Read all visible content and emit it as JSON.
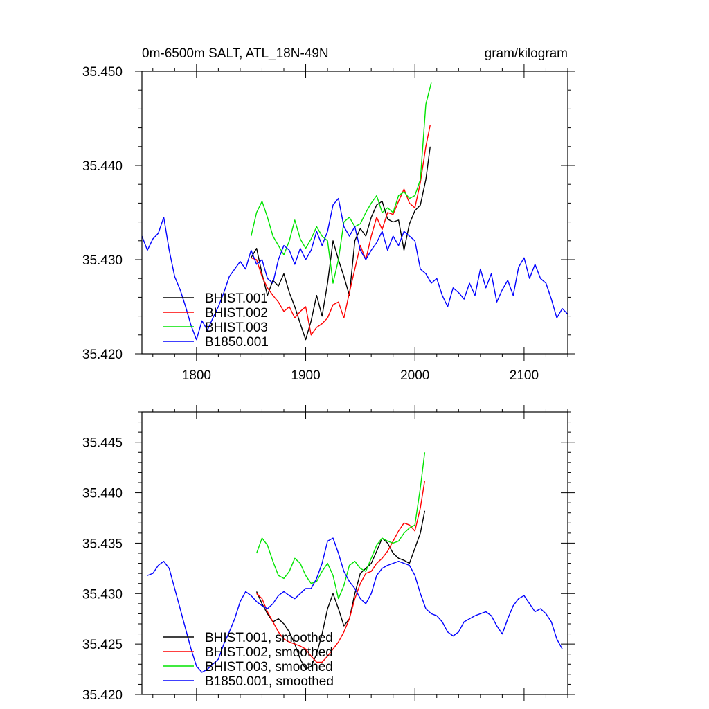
{
  "header": {
    "title": "0m-6500m SALT, ATL_18N-49N",
    "units": "gram/kilogram"
  },
  "colors": {
    "BHIST.001": "#000000",
    "BHIST.002": "#ff0000",
    "BHIST.003": "#00e400",
    "B1850.001": "#0000ff",
    "axis": "#000000",
    "background": "#ffffff"
  },
  "chart_data": [
    {
      "type": "line",
      "title": "0m-6500m SALT, ATL_18N-49N",
      "xlabel": "",
      "ylabel": "",
      "xlim": [
        1750,
        2140
      ],
      "ylim": [
        35.42,
        35.45
      ],
      "xticks": [
        1800,
        1900,
        2000,
        2100
      ],
      "xtick_labels": [
        "1800",
        "1900",
        "2000",
        "2100"
      ],
      "yticks": [
        35.42,
        35.43,
        35.44,
        35.45
      ],
      "ytick_labels": [
        "35.420",
        "35.430",
        "35.440",
        "35.450"
      ],
      "grid": false,
      "legend_position": "bottom-left",
      "series": [
        {
          "name": "BHIST.001",
          "color": "#000000",
          "x": [
            1850,
            1855,
            1860,
            1865,
            1870,
            1875,
            1880,
            1885,
            1890,
            1895,
            1900,
            1905,
            1910,
            1915,
            1920,
            1925,
            1930,
            1935,
            1940,
            1945,
            1950,
            1955,
            1960,
            1965,
            1970,
            1975,
            1980,
            1985,
            1990,
            1995,
            2000,
            2005,
            2010,
            2014
          ],
          "y": [
            35.4302,
            35.4312,
            35.4285,
            35.4262,
            35.4278,
            35.4272,
            35.4285,
            35.4265,
            35.425,
            35.4232,
            35.4215,
            35.4235,
            35.4262,
            35.424,
            35.4275,
            35.432,
            35.43,
            35.4282,
            35.4262,
            35.432,
            35.4333,
            35.4325,
            35.4345,
            35.4358,
            35.4362,
            35.4343,
            35.434,
            35.4342,
            35.431,
            35.4338,
            35.4352,
            35.4358,
            35.4385,
            35.442
          ]
        },
        {
          "name": "BHIST.002",
          "color": "#ff0000",
          "x": [
            1850,
            1855,
            1860,
            1865,
            1870,
            1875,
            1880,
            1885,
            1890,
            1895,
            1900,
            1905,
            1910,
            1915,
            1920,
            1925,
            1930,
            1935,
            1940,
            1945,
            1950,
            1955,
            1960,
            1965,
            1970,
            1975,
            1980,
            1985,
            1990,
            1995,
            2000,
            2005,
            2010,
            2014
          ],
          "y": [
            35.4302,
            35.43,
            35.4282,
            35.427,
            35.4262,
            35.4255,
            35.4245,
            35.425,
            35.4238,
            35.4245,
            35.425,
            35.422,
            35.4228,
            35.4232,
            35.4238,
            35.4252,
            35.4255,
            35.4238,
            35.4265,
            35.429,
            35.4315,
            35.43,
            35.4325,
            35.4345,
            35.4332,
            35.435,
            35.4348,
            35.4362,
            35.4375,
            35.436,
            35.4355,
            35.4382,
            35.442,
            35.4443
          ]
        },
        {
          "name": "BHIST.003",
          "color": "#00e400",
          "x": [
            1850,
            1855,
            1860,
            1865,
            1870,
            1875,
            1880,
            1885,
            1890,
            1895,
            1900,
            1905,
            1910,
            1915,
            1920,
            1925,
            1930,
            1935,
            1940,
            1945,
            1950,
            1955,
            1960,
            1965,
            1970,
            1975,
            1980,
            1985,
            1990,
            1995,
            2000,
            2005,
            2010,
            2015
          ],
          "y": [
            35.4325,
            35.435,
            35.4362,
            35.4345,
            35.4325,
            35.4315,
            35.4305,
            35.432,
            35.4342,
            35.4322,
            35.4312,
            35.4322,
            35.4335,
            35.4325,
            35.432,
            35.4275,
            35.43,
            35.434,
            35.4345,
            35.4335,
            35.4338,
            35.435,
            35.436,
            35.4368,
            35.435,
            35.4355,
            35.435,
            35.4368,
            35.4372,
            35.4365,
            35.4368,
            35.4385,
            35.4465,
            35.4488
          ]
        },
        {
          "name": "B1850.001",
          "color": "#0000ff",
          "x": [
            1750,
            1755,
            1760,
            1765,
            1770,
            1775,
            1780,
            1785,
            1790,
            1795,
            1800,
            1805,
            1810,
            1815,
            1820,
            1825,
            1830,
            1835,
            1840,
            1845,
            1850,
            1855,
            1860,
            1865,
            1870,
            1875,
            1880,
            1885,
            1890,
            1895,
            1900,
            1905,
            1910,
            1915,
            1920,
            1925,
            1930,
            1935,
            1940,
            1945,
            1950,
            1955,
            1960,
            1965,
            1970,
            1975,
            1980,
            1985,
            1990,
            1995,
            2000,
            2005,
            2010,
            2015,
            2020,
            2025,
            2030,
            2035,
            2040,
            2045,
            2050,
            2055,
            2060,
            2065,
            2070,
            2075,
            2080,
            2085,
            2090,
            2095,
            2100,
            2105,
            2110,
            2115,
            2120,
            2125,
            2130,
            2135,
            2140
          ],
          "y": [
            35.4325,
            35.431,
            35.4322,
            35.4328,
            35.4345,
            35.431,
            35.4282,
            35.4268,
            35.425,
            35.423,
            35.4215,
            35.4235,
            35.4225,
            35.4238,
            35.425,
            35.4265,
            35.4282,
            35.429,
            35.4298,
            35.429,
            35.431,
            35.4295,
            35.43,
            35.428,
            35.4275,
            35.43,
            35.4315,
            35.431,
            35.4295,
            35.4312,
            35.43,
            35.431,
            35.433,
            35.4315,
            35.433,
            35.4358,
            35.4365,
            35.4335,
            35.4325,
            35.4335,
            35.431,
            35.43,
            35.431,
            35.4318,
            35.433,
            35.431,
            35.4325,
            35.4315,
            35.433,
            35.4325,
            35.432,
            35.429,
            35.4285,
            35.4275,
            35.428,
            35.4262,
            35.425,
            35.427,
            35.4265,
            35.4258,
            35.4275,
            35.4262,
            35.429,
            35.427,
            35.4285,
            35.4255,
            35.4268,
            35.4278,
            35.4262,
            35.4292,
            35.4302,
            35.428,
            35.4295,
            35.428,
            35.4275,
            35.4258,
            35.4238,
            35.4248,
            35.4242
          ]
        }
      ]
    },
    {
      "type": "line",
      "title": "",
      "xlabel": "",
      "ylabel": "",
      "xlim": [
        1750,
        2140
      ],
      "ylim": [
        35.42,
        35.448
      ],
      "xticks": [
        1800,
        1900,
        2000,
        2100
      ],
      "xtick_labels": [],
      "yticks": [
        35.42,
        35.425,
        35.43,
        35.435,
        35.44,
        35.445
      ],
      "ytick_labels": [
        "35.420",
        "35.425",
        "35.430",
        "35.435",
        "35.440",
        "35.445"
      ],
      "grid": false,
      "legend_position": "bottom-left",
      "series": [
        {
          "name": "BHIST.001, smoothed",
          "color": "#000000",
          "x": [
            1855,
            1860,
            1865,
            1870,
            1875,
            1880,
            1885,
            1890,
            1895,
            1900,
            1905,
            1910,
            1915,
            1920,
            1925,
            1930,
            1935,
            1940,
            1945,
            1950,
            1955,
            1960,
            1965,
            1970,
            1975,
            1980,
            1985,
            1990,
            1995,
            2000,
            2005,
            2009
          ],
          "y": [
            35.4302,
            35.429,
            35.428,
            35.4272,
            35.4275,
            35.427,
            35.4262,
            35.425,
            35.4235,
            35.4225,
            35.4228,
            35.424,
            35.426,
            35.4285,
            35.43,
            35.4285,
            35.4268,
            35.4275,
            35.43,
            35.432,
            35.4325,
            35.433,
            35.4342,
            35.4355,
            35.435,
            35.434,
            35.4335,
            35.4333,
            35.433,
            35.4345,
            35.436,
            35.4382
          ]
        },
        {
          "name": "BHIST.002, smoothed",
          "color": "#ff0000",
          "x": [
            1855,
            1860,
            1865,
            1870,
            1875,
            1880,
            1885,
            1890,
            1895,
            1900,
            1905,
            1910,
            1915,
            1920,
            1925,
            1930,
            1935,
            1940,
            1945,
            1950,
            1955,
            1960,
            1965,
            1970,
            1975,
            1980,
            1985,
            1990,
            1995,
            2000,
            2005,
            2009
          ],
          "y": [
            35.43,
            35.4295,
            35.4282,
            35.4272,
            35.4262,
            35.4255,
            35.4252,
            35.425,
            35.4248,
            35.4245,
            35.4238,
            35.4232,
            35.4232,
            35.4238,
            35.4245,
            35.4252,
            35.4262,
            35.4275,
            35.4295,
            35.431,
            35.432,
            35.4322,
            35.433,
            35.4335,
            35.4342,
            35.4352,
            35.4362,
            35.437,
            35.4368,
            35.4362,
            35.4385,
            35.4412
          ]
        },
        {
          "name": "BHIST.003, smoothed",
          "color": "#00e400",
          "x": [
            1855,
            1860,
            1865,
            1870,
            1875,
            1880,
            1885,
            1890,
            1895,
            1900,
            1905,
            1910,
            1915,
            1920,
            1925,
            1930,
            1935,
            1940,
            1945,
            1950,
            1955,
            1960,
            1965,
            1970,
            1975,
            1980,
            1985,
            1990,
            1995,
            2000,
            2005,
            2009
          ],
          "y": [
            35.434,
            35.4355,
            35.4348,
            35.4332,
            35.4318,
            35.4315,
            35.4322,
            35.4335,
            35.433,
            35.4318,
            35.431,
            35.4312,
            35.4322,
            35.433,
            35.4318,
            35.4295,
            35.4308,
            35.4328,
            35.4332,
            35.4325,
            35.4322,
            35.4335,
            35.4348,
            35.4355,
            35.4352,
            35.435,
            35.4352,
            35.436,
            35.4365,
            35.4368,
            35.4405,
            35.444
          ]
        },
        {
          "name": "B1850.001, smoothed",
          "color": "#0000ff",
          "x": [
            1755,
            1760,
            1765,
            1770,
            1775,
            1780,
            1785,
            1790,
            1795,
            1800,
            1805,
            1810,
            1815,
            1820,
            1825,
            1830,
            1835,
            1840,
            1845,
            1850,
            1855,
            1860,
            1865,
            1870,
            1875,
            1880,
            1885,
            1890,
            1895,
            1900,
            1905,
            1910,
            1915,
            1920,
            1925,
            1930,
            1935,
            1940,
            1945,
            1950,
            1955,
            1960,
            1965,
            1970,
            1975,
            1980,
            1985,
            1990,
            1995,
            2000,
            2005,
            2010,
            2015,
            2020,
            2025,
            2030,
            2035,
            2040,
            2045,
            2050,
            2055,
            2060,
            2065,
            2070,
            2075,
            2080,
            2085,
            2090,
            2095,
            2100,
            2105,
            2110,
            2115,
            2120,
            2125,
            2130,
            2135
          ],
          "y": [
            35.4318,
            35.432,
            35.4328,
            35.4332,
            35.4325,
            35.4305,
            35.4285,
            35.4265,
            35.4245,
            35.4228,
            35.4222,
            35.4225,
            35.423,
            35.4235,
            35.425,
            35.4262,
            35.4275,
            35.4292,
            35.4302,
            35.4298,
            35.4292,
            35.4288,
            35.4285,
            35.429,
            35.4298,
            35.4302,
            35.4298,
            35.4295,
            35.43,
            35.4305,
            35.4305,
            35.4315,
            35.433,
            35.4352,
            35.4355,
            35.434,
            35.4322,
            35.4312,
            35.4305,
            35.4295,
            35.429,
            35.43,
            35.4318,
            35.4325,
            35.4328,
            35.433,
            35.4332,
            35.433,
            35.4328,
            35.4318,
            35.43,
            35.4285,
            35.428,
            35.4278,
            35.4272,
            35.4262,
            35.4258,
            35.4262,
            35.4272,
            35.4275,
            35.4278,
            35.428,
            35.4282,
            35.4278,
            35.4268,
            35.426,
            35.4275,
            35.4288,
            35.4295,
            35.4298,
            35.429,
            35.4282,
            35.4285,
            35.428,
            35.4272,
            35.4255,
            35.4245
          ]
        }
      ]
    }
  ]
}
